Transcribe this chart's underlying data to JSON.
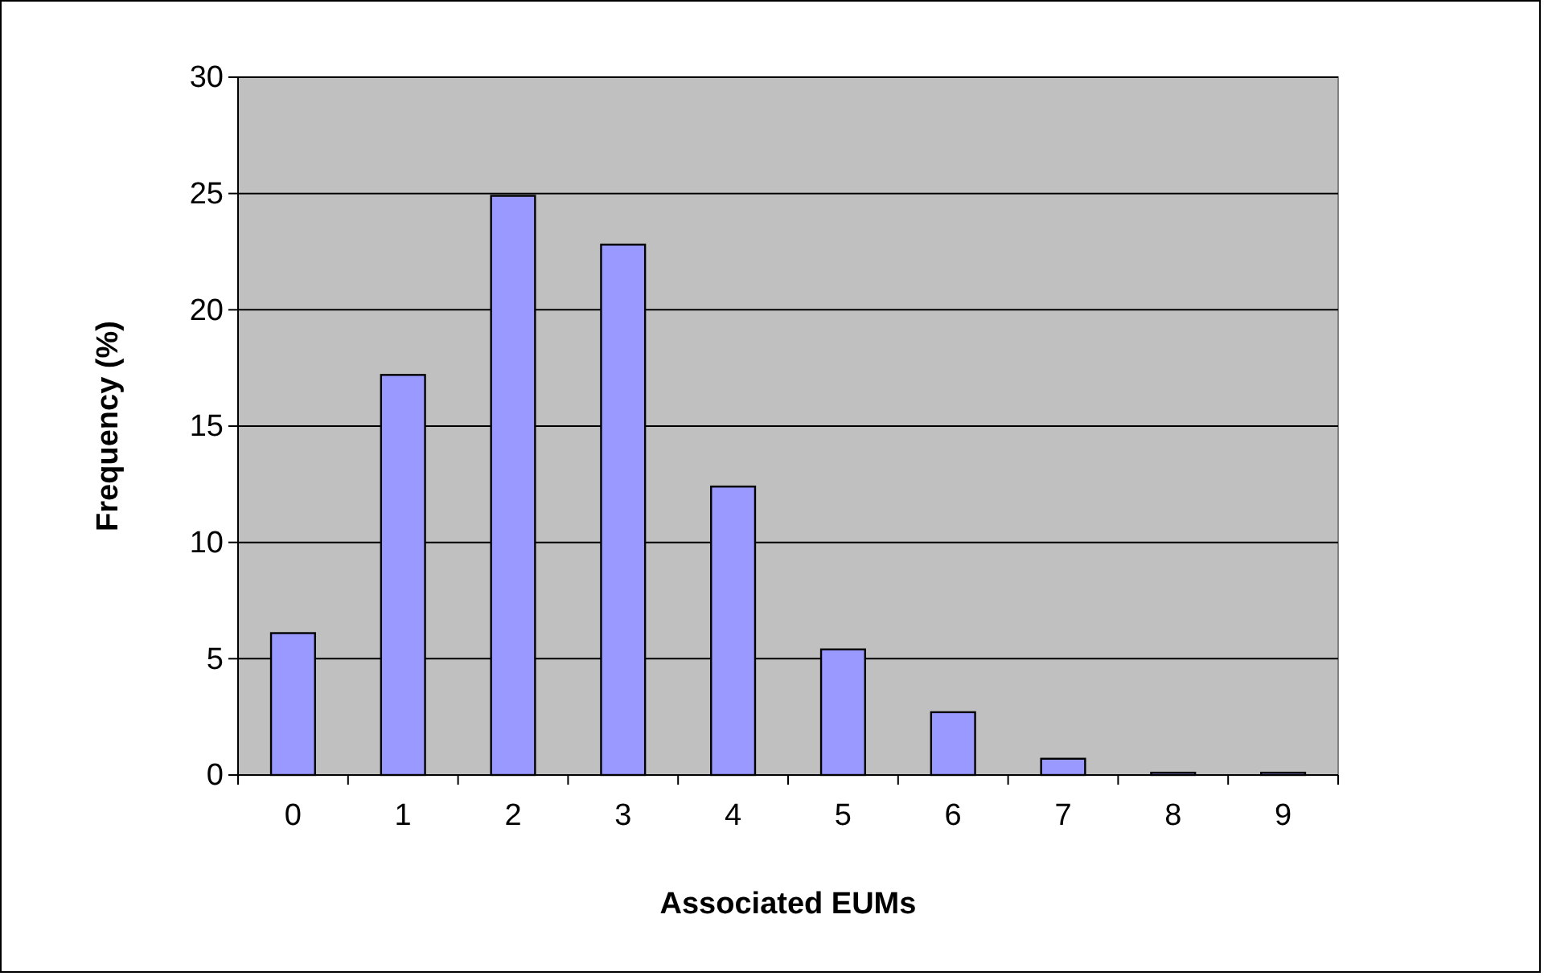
{
  "chart_data": {
    "type": "bar",
    "xlabel": "Associated EUMs",
    "ylabel": "Frequency (%)",
    "categories": [
      "0",
      "1",
      "2",
      "3",
      "4",
      "5",
      "6",
      "7",
      "8",
      "9"
    ],
    "values": [
      6.1,
      17.2,
      24.9,
      22.8,
      12.4,
      5.4,
      2.7,
      0.7,
      0.1,
      0.1
    ],
    "color": "#9999ff",
    "ylim": [
      0,
      30
    ],
    "yticks": [
      0,
      5,
      10,
      15,
      20,
      25,
      30
    ],
    "grid": "y"
  }
}
